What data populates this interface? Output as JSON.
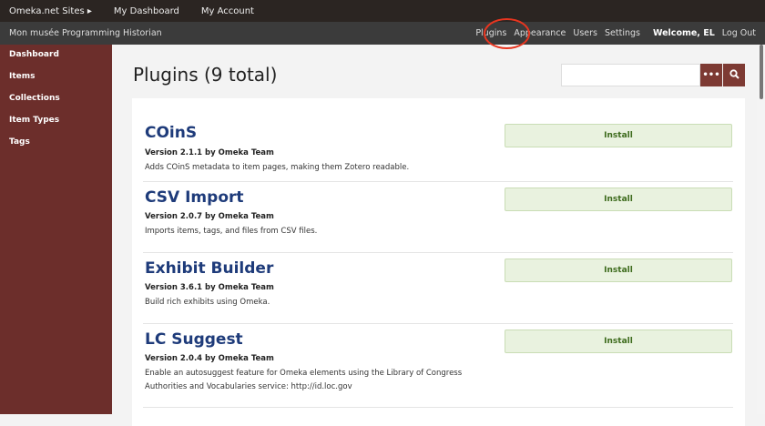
{
  "topbar": {
    "sites": "Omeka.net Sites ▸",
    "dashboard": "My Dashboard",
    "account": "My Account"
  },
  "subbar": {
    "site_name": "Mon musée Programming Historian",
    "nav": [
      "Plugins",
      "Appearance",
      "Users",
      "Settings"
    ],
    "welcome": "Welcome, EL",
    "logout": "Log Out"
  },
  "sidebar": {
    "items": [
      "Dashboard",
      "Items",
      "Collections",
      "Item Types",
      "Tags"
    ]
  },
  "page": {
    "title": "Plugins (9 total)",
    "search_value": "",
    "advanced_label": "•••",
    "search_icon": "🔍"
  },
  "plugins": [
    {
      "name": "COinS",
      "version": "Version 2.1.1 by Omeka Team",
      "desc": "Adds COinS metadata to item pages, making them Zotero readable.",
      "button": "Install"
    },
    {
      "name": "CSV Import",
      "version": "Version 2.0.7 by Omeka Team",
      "desc": "Imports items, tags, and files from CSV files.",
      "button": "Install"
    },
    {
      "name": "Exhibit Builder",
      "version": "Version 3.6.1 by Omeka Team",
      "desc": "Build rich exhibits using Omeka.",
      "button": "Install"
    },
    {
      "name": "LC Suggest",
      "version": "Version 2.0.4 by Omeka Team",
      "desc": "Enable an autosuggest feature for Omeka elements using the Library of Congress Authorities and Vocabularies service: http://id.loc.gov",
      "button": "Install"
    }
  ],
  "colors": {
    "sidebar": "#6c2e2b",
    "accent": "#7d3a33",
    "title": "#1e3b7a",
    "install_bg": "#e9f2df",
    "highlight": "#e8351f"
  }
}
